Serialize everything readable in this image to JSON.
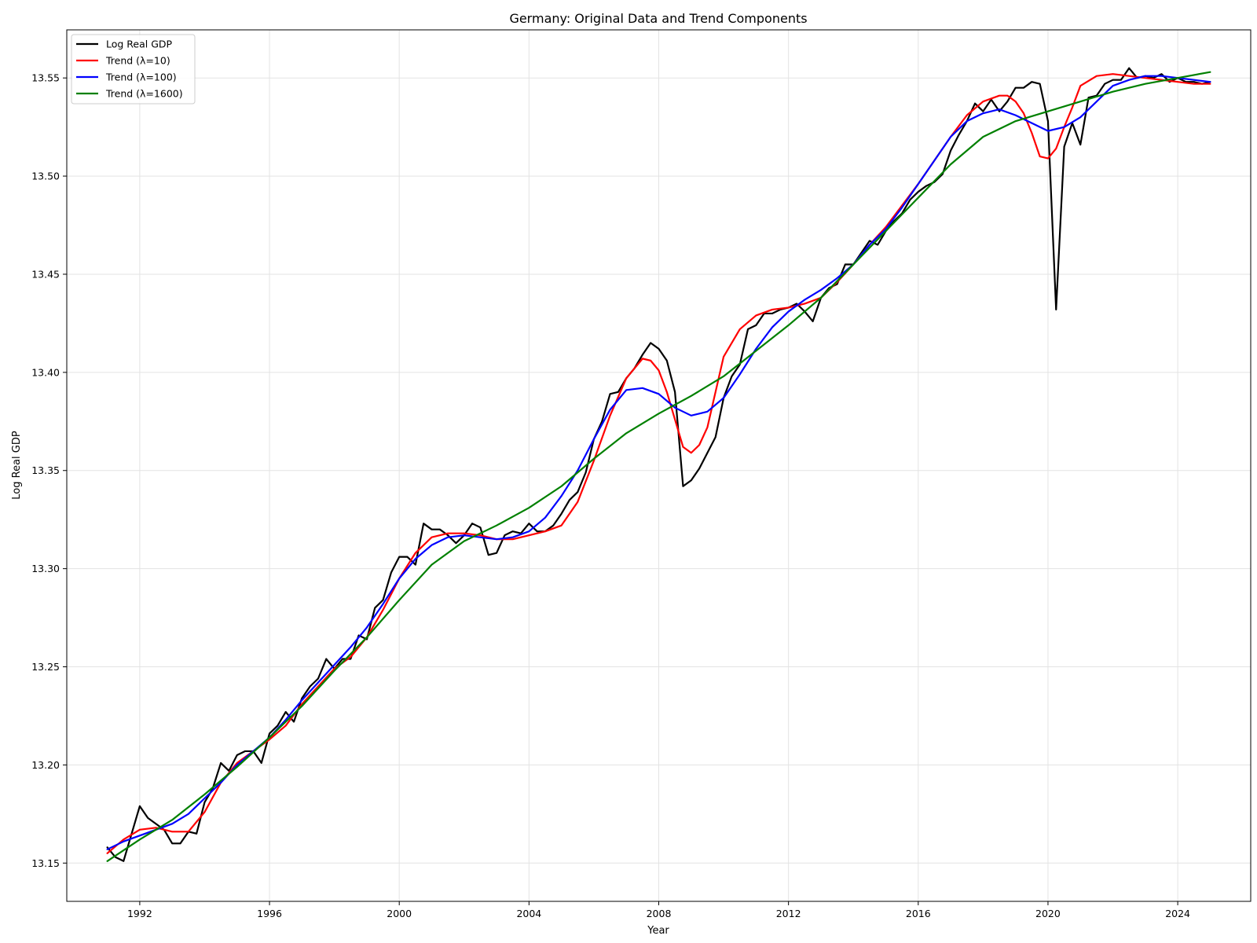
{
  "chart_data": {
    "type": "line",
    "title": "Germany: Original Data and Trend Components",
    "xlabel": "Year",
    "ylabel": "Log Real GDP",
    "xlim": [
      1989.75,
      2026.25
    ],
    "ylim": [
      13.1305,
      13.5745
    ],
    "xticks": [
      1992,
      1996,
      2000,
      2004,
      2008,
      2012,
      2016,
      2020,
      2024
    ],
    "yticks": [
      "13.15",
      "13.20",
      "13.25",
      "13.30",
      "13.35",
      "13.40",
      "13.45",
      "13.50",
      "13.55"
    ],
    "grid": true,
    "legend": "upper-left",
    "series": [
      {
        "name": "Log Real GDP",
        "color": "#000000",
        "x": [
          1991.0,
          1991.25,
          1991.5,
          1991.75,
          1992.0,
          1992.25,
          1992.5,
          1992.75,
          1993.0,
          1993.25,
          1993.5,
          1993.75,
          1994.0,
          1994.25,
          1994.5,
          1994.75,
          1995.0,
          1995.25,
          1995.5,
          1995.75,
          1996.0,
          1996.25,
          1996.5,
          1996.75,
          1997.0,
          1997.25,
          1997.5,
          1997.75,
          1998.0,
          1998.25,
          1998.5,
          1998.75,
          1999.0,
          1999.25,
          1999.5,
          1999.75,
          2000.0,
          2000.25,
          2000.5,
          2000.75,
          2001.0,
          2001.25,
          2001.5,
          2001.75,
          2002.0,
          2002.25,
          2002.5,
          2002.75,
          2003.0,
          2003.25,
          2003.5,
          2003.75,
          2004.0,
          2004.25,
          2004.5,
          2004.75,
          2005.0,
          2005.25,
          2005.5,
          2005.75,
          2006.0,
          2006.25,
          2006.5,
          2006.75,
          2007.0,
          2007.25,
          2007.5,
          2007.75,
          2008.0,
          2008.25,
          2008.5,
          2008.75,
          2009.0,
          2009.25,
          2009.5,
          2009.75,
          2010.0,
          2010.25,
          2010.5,
          2010.75,
          2011.0,
          2011.25,
          2011.5,
          2011.75,
          2012.0,
          2012.25,
          2012.5,
          2012.75,
          2013.0,
          2013.25,
          2013.5,
          2013.75,
          2014.0,
          2014.25,
          2014.5,
          2014.75,
          2015.0,
          2015.25,
          2015.5,
          2015.75,
          2016.0,
          2016.25,
          2016.5,
          2016.75,
          2017.0,
          2017.25,
          2017.5,
          2017.75,
          2018.0,
          2018.25,
          2018.5,
          2018.75,
          2019.0,
          2019.25,
          2019.5,
          2019.75,
          2020.0,
          2020.25,
          2020.5,
          2020.75,
          2021.0,
          2021.25,
          2021.5,
          2021.75,
          2022.0,
          2022.25,
          2022.5,
          2022.75,
          2023.0,
          2023.25,
          2023.5,
          2023.75,
          2024.0,
          2024.25,
          2024.5,
          2024.75,
          2025.0
        ],
        "y": [
          13.158,
          13.153,
          13.151,
          13.165,
          13.179,
          13.173,
          13.17,
          13.167,
          13.16,
          13.16,
          13.166,
          13.165,
          13.181,
          13.188,
          13.201,
          13.197,
          13.205,
          13.207,
          13.207,
          13.201,
          13.216,
          13.22,
          13.227,
          13.222,
          13.234,
          13.24,
          13.244,
          13.254,
          13.249,
          13.254,
          13.254,
          13.266,
          13.264,
          13.28,
          13.284,
          13.298,
          13.306,
          13.306,
          13.302,
          13.323,
          13.32,
          13.32,
          13.317,
          13.313,
          13.317,
          13.323,
          13.321,
          13.307,
          13.308,
          13.317,
          13.319,
          13.318,
          13.323,
          13.319,
          13.319,
          13.322,
          13.328,
          13.335,
          13.339,
          13.349,
          13.366,
          13.375,
          13.389,
          13.39,
          13.397,
          13.402,
          13.409,
          13.415,
          13.412,
          13.406,
          13.39,
          13.342,
          13.345,
          13.351,
          13.359,
          13.367,
          13.387,
          13.398,
          13.404,
          13.422,
          13.424,
          13.43,
          13.43,
          13.432,
          13.433,
          13.435,
          13.431,
          13.426,
          13.438,
          13.443,
          13.445,
          13.455,
          13.455,
          13.461,
          13.467,
          13.465,
          13.472,
          13.477,
          13.481,
          13.488,
          13.492,
          13.495,
          13.497,
          13.501,
          13.513,
          13.521,
          13.528,
          13.537,
          13.533,
          13.539,
          13.533,
          13.538,
          13.545,
          13.545,
          13.548,
          13.547,
          13.528,
          13.432,
          13.515,
          13.527,
          13.516,
          13.54,
          13.541,
          13.547,
          13.549,
          13.549,
          13.555,
          13.55,
          13.551,
          13.55,
          13.552,
          13.548,
          13.55,
          13.548,
          13.548,
          13.547,
          13.548
        ]
      },
      {
        "name": "Trend (λ=10)",
        "color": "#ff0000",
        "x": [
          1991.0,
          1991.5,
          1992.0,
          1992.5,
          1993.0,
          1993.5,
          1994.0,
          1994.5,
          1995.0,
          1995.5,
          1996.0,
          1996.5,
          1997.0,
          1997.5,
          1998.0,
          1998.5,
          1999.0,
          1999.5,
          2000.0,
          2000.5,
          2001.0,
          2001.5,
          2002.0,
          2002.5,
          2003.0,
          2003.5,
          2004.0,
          2004.5,
          2005.0,
          2005.5,
          2006.0,
          2006.5,
          2007.0,
          2007.5,
          2007.75,
          2008.0,
          2008.25,
          2008.5,
          2008.75,
          2009.0,
          2009.25,
          2009.5,
          2009.75,
          2010.0,
          2010.5,
          2011.0,
          2011.5,
          2012.0,
          2012.5,
          2013.0,
          2013.5,
          2014.0,
          2014.5,
          2015.0,
          2015.5,
          2016.0,
          2016.5,
          2017.0,
          2017.5,
          2018.0,
          2018.5,
          2018.75,
          2019.0,
          2019.25,
          2019.5,
          2019.75,
          2020.0,
          2020.25,
          2020.5,
          2020.75,
          2021.0,
          2021.5,
          2022.0,
          2022.5,
          2023.0,
          2023.5,
          2024.0,
          2024.5,
          2025.0
        ],
        "y": [
          13.155,
          13.162,
          13.167,
          13.168,
          13.166,
          13.166,
          13.176,
          13.191,
          13.201,
          13.207,
          13.213,
          13.22,
          13.231,
          13.24,
          13.249,
          13.255,
          13.265,
          13.279,
          13.295,
          13.308,
          13.316,
          13.318,
          13.318,
          13.317,
          13.315,
          13.315,
          13.317,
          13.319,
          13.322,
          13.334,
          13.355,
          13.378,
          13.397,
          13.407,
          13.406,
          13.401,
          13.39,
          13.376,
          13.362,
          13.359,
          13.363,
          13.372,
          13.39,
          13.408,
          13.422,
          13.429,
          13.432,
          13.433,
          13.435,
          13.438,
          13.446,
          13.455,
          13.465,
          13.474,
          13.485,
          13.496,
          13.508,
          13.52,
          13.531,
          13.538,
          13.541,
          13.541,
          13.538,
          13.532,
          13.522,
          13.51,
          13.509,
          13.514,
          13.525,
          13.535,
          13.546,
          13.551,
          13.552,
          13.551,
          13.55,
          13.549,
          13.548,
          13.547,
          13.547
        ]
      },
      {
        "name": "Trend (λ=100)",
        "color": "#0000ff",
        "x": [
          1991.0,
          1991.5,
          1992.0,
          1992.5,
          1993.0,
          1993.5,
          1994.0,
          1994.5,
          1995.0,
          1995.5,
          1996.0,
          1996.5,
          1997.0,
          1997.5,
          1998.0,
          1998.5,
          1999.0,
          1999.5,
          2000.0,
          2000.5,
          2001.0,
          2001.5,
          2002.0,
          2002.5,
          2003.0,
          2003.5,
          2004.0,
          2004.5,
          2005.0,
          2005.5,
          2006.0,
          2006.5,
          2007.0,
          2007.5,
          2008.0,
          2008.5,
          2009.0,
          2009.5,
          2010.0,
          2010.5,
          2011.0,
          2011.5,
          2012.0,
          2012.5,
          2013.0,
          2013.5,
          2014.0,
          2014.5,
          2015.0,
          2015.5,
          2016.0,
          2016.5,
          2017.0,
          2017.5,
          2018.0,
          2018.5,
          2019.0,
          2019.5,
          2020.0,
          2020.5,
          2021.0,
          2021.5,
          2022.0,
          2022.5,
          2023.0,
          2023.5,
          2024.0,
          2024.5,
          2025.0
        ],
        "y": [
          13.157,
          13.161,
          13.164,
          13.167,
          13.17,
          13.175,
          13.183,
          13.191,
          13.2,
          13.207,
          13.214,
          13.223,
          13.233,
          13.242,
          13.251,
          13.26,
          13.27,
          13.282,
          13.295,
          13.305,
          13.312,
          13.316,
          13.317,
          13.316,
          13.315,
          13.316,
          13.319,
          13.326,
          13.337,
          13.35,
          13.366,
          13.381,
          13.391,
          13.392,
          13.389,
          13.382,
          13.378,
          13.38,
          13.387,
          13.399,
          13.412,
          13.423,
          13.431,
          13.437,
          13.442,
          13.448,
          13.455,
          13.465,
          13.473,
          13.484,
          13.496,
          13.508,
          13.52,
          13.528,
          13.532,
          13.534,
          13.531,
          13.527,
          13.523,
          13.525,
          13.53,
          13.538,
          13.546,
          13.549,
          13.551,
          13.551,
          13.55,
          13.549,
          13.548
        ]
      },
      {
        "name": "Trend (λ=1600)",
        "color": "#008000",
        "x": [
          1991.0,
          1992.0,
          1993.0,
          1994.0,
          1995.0,
          1996.0,
          1997.0,
          1998.0,
          1999.0,
          2000.0,
          2001.0,
          2002.0,
          2003.0,
          2004.0,
          2005.0,
          2006.0,
          2007.0,
          2008.0,
          2009.0,
          2010.0,
          2011.0,
          2012.0,
          2013.0,
          2014.0,
          2015.0,
          2016.0,
          2017.0,
          2018.0,
          2019.0,
          2020.0,
          2021.0,
          2022.0,
          2023.0,
          2024.0,
          2025.0
        ],
        "y": [
          13.151,
          13.162,
          13.172,
          13.185,
          13.199,
          13.214,
          13.23,
          13.248,
          13.265,
          13.284,
          13.302,
          13.314,
          13.322,
          13.331,
          13.342,
          13.356,
          13.369,
          13.379,
          13.388,
          13.398,
          13.411,
          13.424,
          13.438,
          13.455,
          13.472,
          13.489,
          13.506,
          13.52,
          13.528,
          13.533,
          13.538,
          13.543,
          13.547,
          13.55,
          13.553
        ]
      }
    ]
  }
}
